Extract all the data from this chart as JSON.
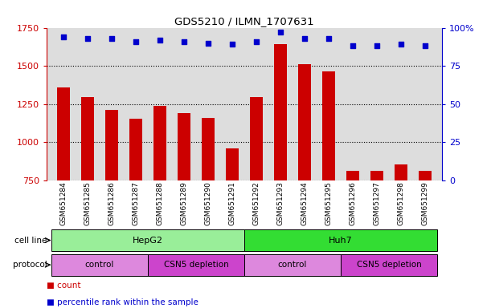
{
  "title": "GDS5210 / ILMN_1707631",
  "samples": [
    "GSM651284",
    "GSM651285",
    "GSM651286",
    "GSM651287",
    "GSM651288",
    "GSM651289",
    "GSM651290",
    "GSM651291",
    "GSM651292",
    "GSM651293",
    "GSM651294",
    "GSM651295",
    "GSM651296",
    "GSM651297",
    "GSM651298",
    "GSM651299"
  ],
  "counts": [
    1360,
    1295,
    1210,
    1155,
    1235,
    1190,
    1160,
    960,
    1295,
    1640,
    1510,
    1465,
    810,
    810,
    855,
    810
  ],
  "percentile_ranks": [
    94,
    93,
    93,
    91,
    92,
    91,
    90,
    89,
    91,
    97,
    93,
    93,
    88,
    88,
    89,
    88
  ],
  "bar_color": "#cc0000",
  "dot_color": "#0000cc",
  "ylim_left": [
    750,
    1750
  ],
  "ylim_right": [
    0,
    100
  ],
  "yticks_left": [
    750,
    1000,
    1250,
    1500,
    1750
  ],
  "yticks_right": [
    0,
    25,
    50,
    75,
    100
  ],
  "ylabel_left_color": "#cc0000",
  "ylabel_right_color": "#0000cc",
  "cell_line_groups": [
    {
      "label": "HepG2",
      "start": 0,
      "end": 7,
      "color": "#99ee99"
    },
    {
      "label": "Huh7",
      "start": 8,
      "end": 15,
      "color": "#33dd33"
    }
  ],
  "protocol_groups": [
    {
      "label": "control",
      "start": 0,
      "end": 3,
      "color": "#dd88dd"
    },
    {
      "label": "CSN5 depletion",
      "start": 4,
      "end": 7,
      "color": "#cc44cc"
    },
    {
      "label": "control",
      "start": 8,
      "end": 11,
      "color": "#dd88dd"
    },
    {
      "label": "CSN5 depletion",
      "start": 12,
      "end": 15,
      "color": "#cc44cc"
    }
  ],
  "cell_line_label": "cell line",
  "protocol_label": "protocol",
  "legend_count_label": "count",
  "legend_percentile_label": "percentile rank within the sample",
  "background_color": "#ffffff",
  "plot_bg_color": "#dddddd",
  "bar_width": 0.55
}
